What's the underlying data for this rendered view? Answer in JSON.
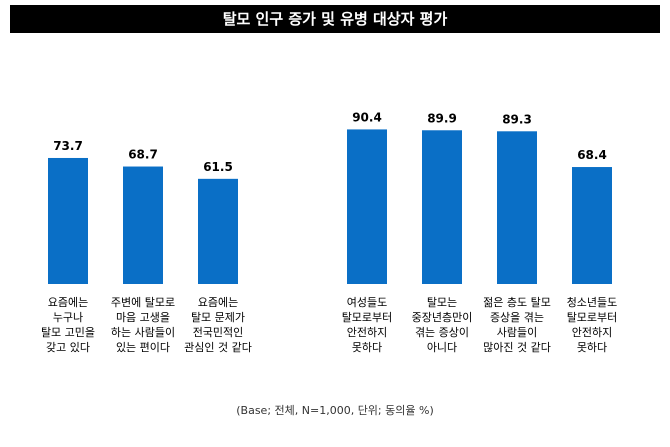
{
  "title": "탈모 인구 증가 및 유병 대상자 평가",
  "footnote": "(Base; 전체, N=1,000, 단위; 동의율 %)",
  "colors": {
    "bar": "#0A6FC6",
    "text": "#000000",
    "title_bg": "#000000"
  },
  "chart_data": {
    "type": "bar",
    "title": "탈모 인구 증가 및 유병 대상자 평가",
    "ylim": [
      0,
      100
    ],
    "groups": [
      {
        "categories": [
          [
            "요즘에는",
            "누구나",
            "탈모 고민을",
            "갖고 있다"
          ],
          [
            "주변에 탈모로",
            "마음 고생을",
            "하는 사람들이",
            "있는 편이다"
          ],
          [
            "요즘에는",
            "탈모 문제가",
            "전국민적인",
            "관심인 것 같다"
          ]
        ],
        "values": [
          73.7,
          68.7,
          61.5
        ],
        "value_labels": [
          "73.7",
          "68.7",
          "61.5"
        ]
      },
      {
        "categories": [
          [
            "여성들도",
            "탈모로부터",
            "안전하지",
            "못하다"
          ],
          [
            "탈모는",
            "중장년층만이",
            "겪는 증상이",
            "아니다"
          ],
          [
            "젊은 층도 탈모",
            "증상을 겪는",
            "사람들이",
            "많아진 것 같다"
          ],
          [
            "청소년들도",
            "탈모로부터",
            "안전하지",
            "못하다"
          ]
        ],
        "values": [
          90.4,
          89.9,
          89.3,
          68.4
        ],
        "value_labels": [
          "90.4",
          "89.9",
          "89.3",
          "68.4"
        ]
      }
    ]
  }
}
